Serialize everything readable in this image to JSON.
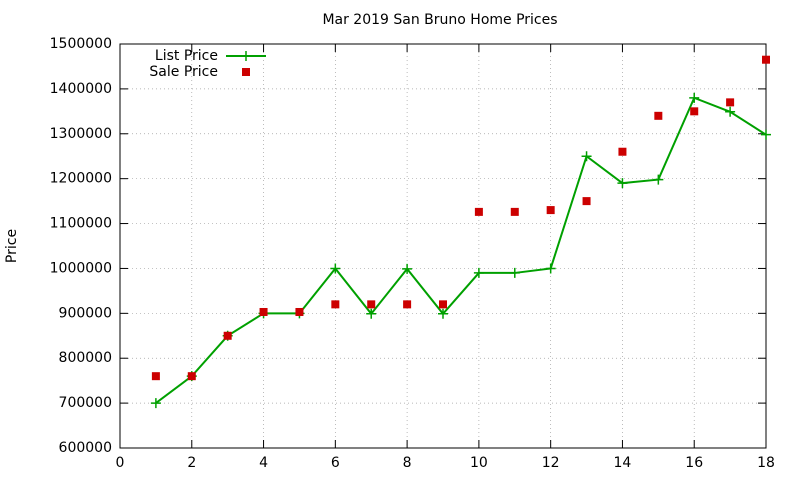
{
  "chart_data": {
    "type": "line",
    "title": "Mar 2019 San Bruno Home Prices",
    "y_label": "Price",
    "x": [
      1,
      2,
      3,
      4,
      5,
      6,
      7,
      8,
      9,
      10,
      11,
      12,
      13,
      14,
      15,
      16,
      17,
      18
    ],
    "series": [
      {
        "name": "List Price",
        "color": "#00a000",
        "style": "linespoints",
        "values": [
          700000,
          760000,
          850000,
          900000,
          900000,
          1000000,
          899000,
          999000,
          899000,
          990000,
          990000,
          1000000,
          1250000,
          1190000,
          1198000,
          1380000,
          1349000,
          1298000
        ]
      },
      {
        "name": "Sale Price",
        "color": "#cc0000",
        "style": "points",
        "values": [
          760000,
          760000,
          850000,
          903000,
          903000,
          920000,
          920000,
          920000,
          920000,
          1126000,
          1126000,
          1130000,
          1150000,
          1260000,
          1340000,
          1350000,
          1370000,
          1465000
        ]
      }
    ],
    "xlim": [
      0,
      18
    ],
    "xticks": [
      0,
      2,
      4,
      6,
      8,
      10,
      12,
      14,
      16,
      18
    ],
    "ylim": [
      600000,
      1500000
    ],
    "yticks": [
      600000,
      700000,
      800000,
      900000,
      1000000,
      1100000,
      1200000,
      1300000,
      1400000,
      1500000
    ],
    "grid": true,
    "legend": "top-left"
  }
}
